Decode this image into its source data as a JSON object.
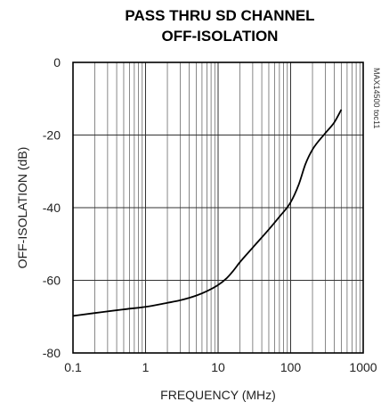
{
  "chart_data": {
    "type": "line",
    "title": [
      "PASS THRU SD CHANNEL",
      "OFF-ISOLATION"
    ],
    "xlabel": "FREQUENCY (MHz)",
    "ylabel": "OFF-ISOLATION (dB)",
    "x_scale": "log",
    "xlim": [
      0.1,
      1000
    ],
    "ylim": [
      -80,
      0
    ],
    "grid": true,
    "x_ticks": [
      {
        "value": 0.1,
        "label": "0.1"
      },
      {
        "value": 1,
        "label": "1"
      },
      {
        "value": 10,
        "label": "10"
      },
      {
        "value": 100,
        "label": "100"
      },
      {
        "value": 1000,
        "label": "1000"
      }
    ],
    "y_ticks": [
      {
        "value": 0,
        "label": "0"
      },
      {
        "value": -20,
        "label": "-20"
      },
      {
        "value": -40,
        "label": "-40"
      },
      {
        "value": -60,
        "label": "-60"
      },
      {
        "value": -80,
        "label": "-80"
      }
    ],
    "annotation": "MAX14500 toc11",
    "series": [
      {
        "x": [
          0.1,
          0.2,
          0.5,
          1,
          2,
          3,
          5,
          7,
          10,
          13,
          16,
          20,
          30,
          50,
          70,
          100,
          130,
          160,
          200,
          300,
          400,
          500
        ],
        "y": [
          -69.8,
          -69,
          -68,
          -67.3,
          -66.2,
          -65.5,
          -64.2,
          -63,
          -61.3,
          -59.5,
          -57.5,
          -55,
          -51,
          -46,
          -42.5,
          -38.5,
          -33.5,
          -28,
          -24,
          -19.5,
          -16.5,
          -13
        ]
      }
    ]
  }
}
